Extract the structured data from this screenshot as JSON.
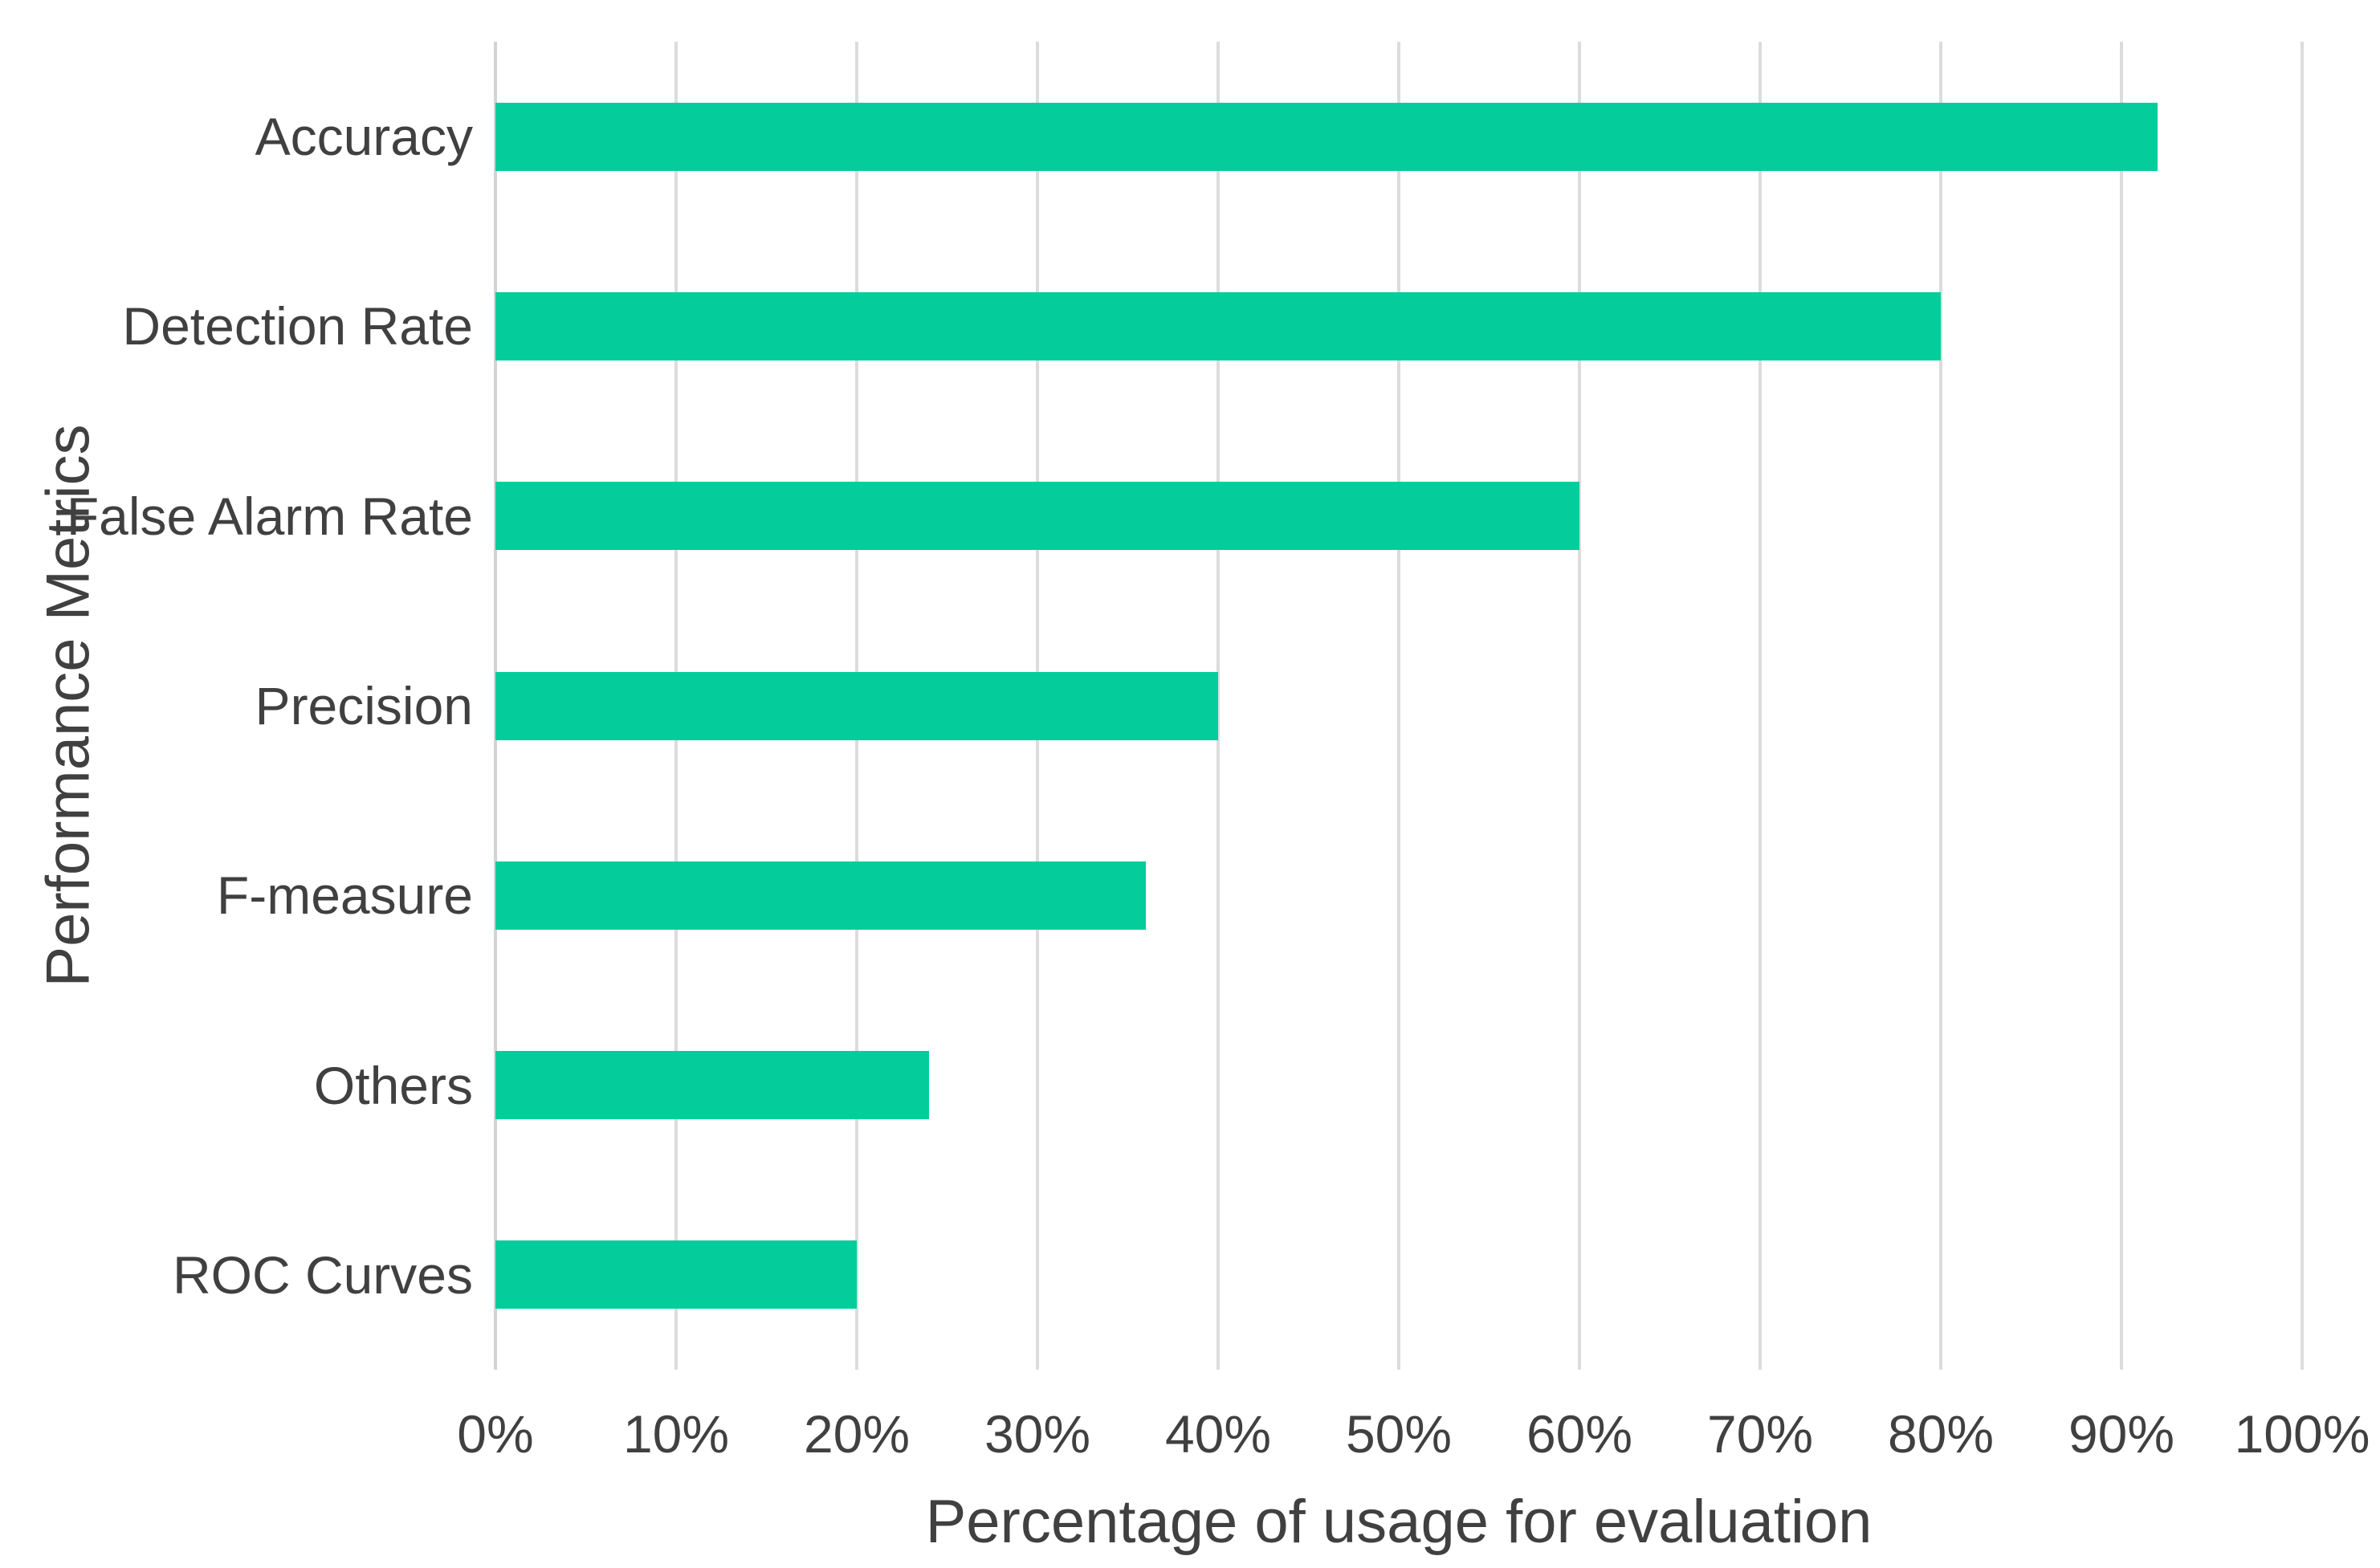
{
  "chart_data": {
    "type": "bar",
    "orientation": "horizontal",
    "title": "",
    "xlabel": "Percentage of usage for evaluation",
    "ylabel": "Performance Metrics",
    "categories": [
      "Accuracy",
      "Detection Rate",
      "False Alarm Rate",
      "Precision",
      "F-measure",
      "Others",
      "ROC Curves"
    ],
    "values": [
      92,
      80,
      60,
      40,
      36,
      24,
      20
    ],
    "value_unit": "%",
    "xlim": [
      0,
      100
    ],
    "x_tick_step": 10,
    "x_tick_labels": [
      "0%",
      "10%",
      "20%",
      "30%",
      "40%",
      "50%",
      "60%",
      "70%",
      "80%",
      "90%",
      "100%"
    ],
    "grid": "vertical",
    "legend_position": "none",
    "bar_color": "#04CD9B",
    "gridline_color": "#DCDCDC",
    "axis_line_color": "#D3D3D3",
    "text_color": "#404040",
    "background_color": "#FFFFFF"
  }
}
